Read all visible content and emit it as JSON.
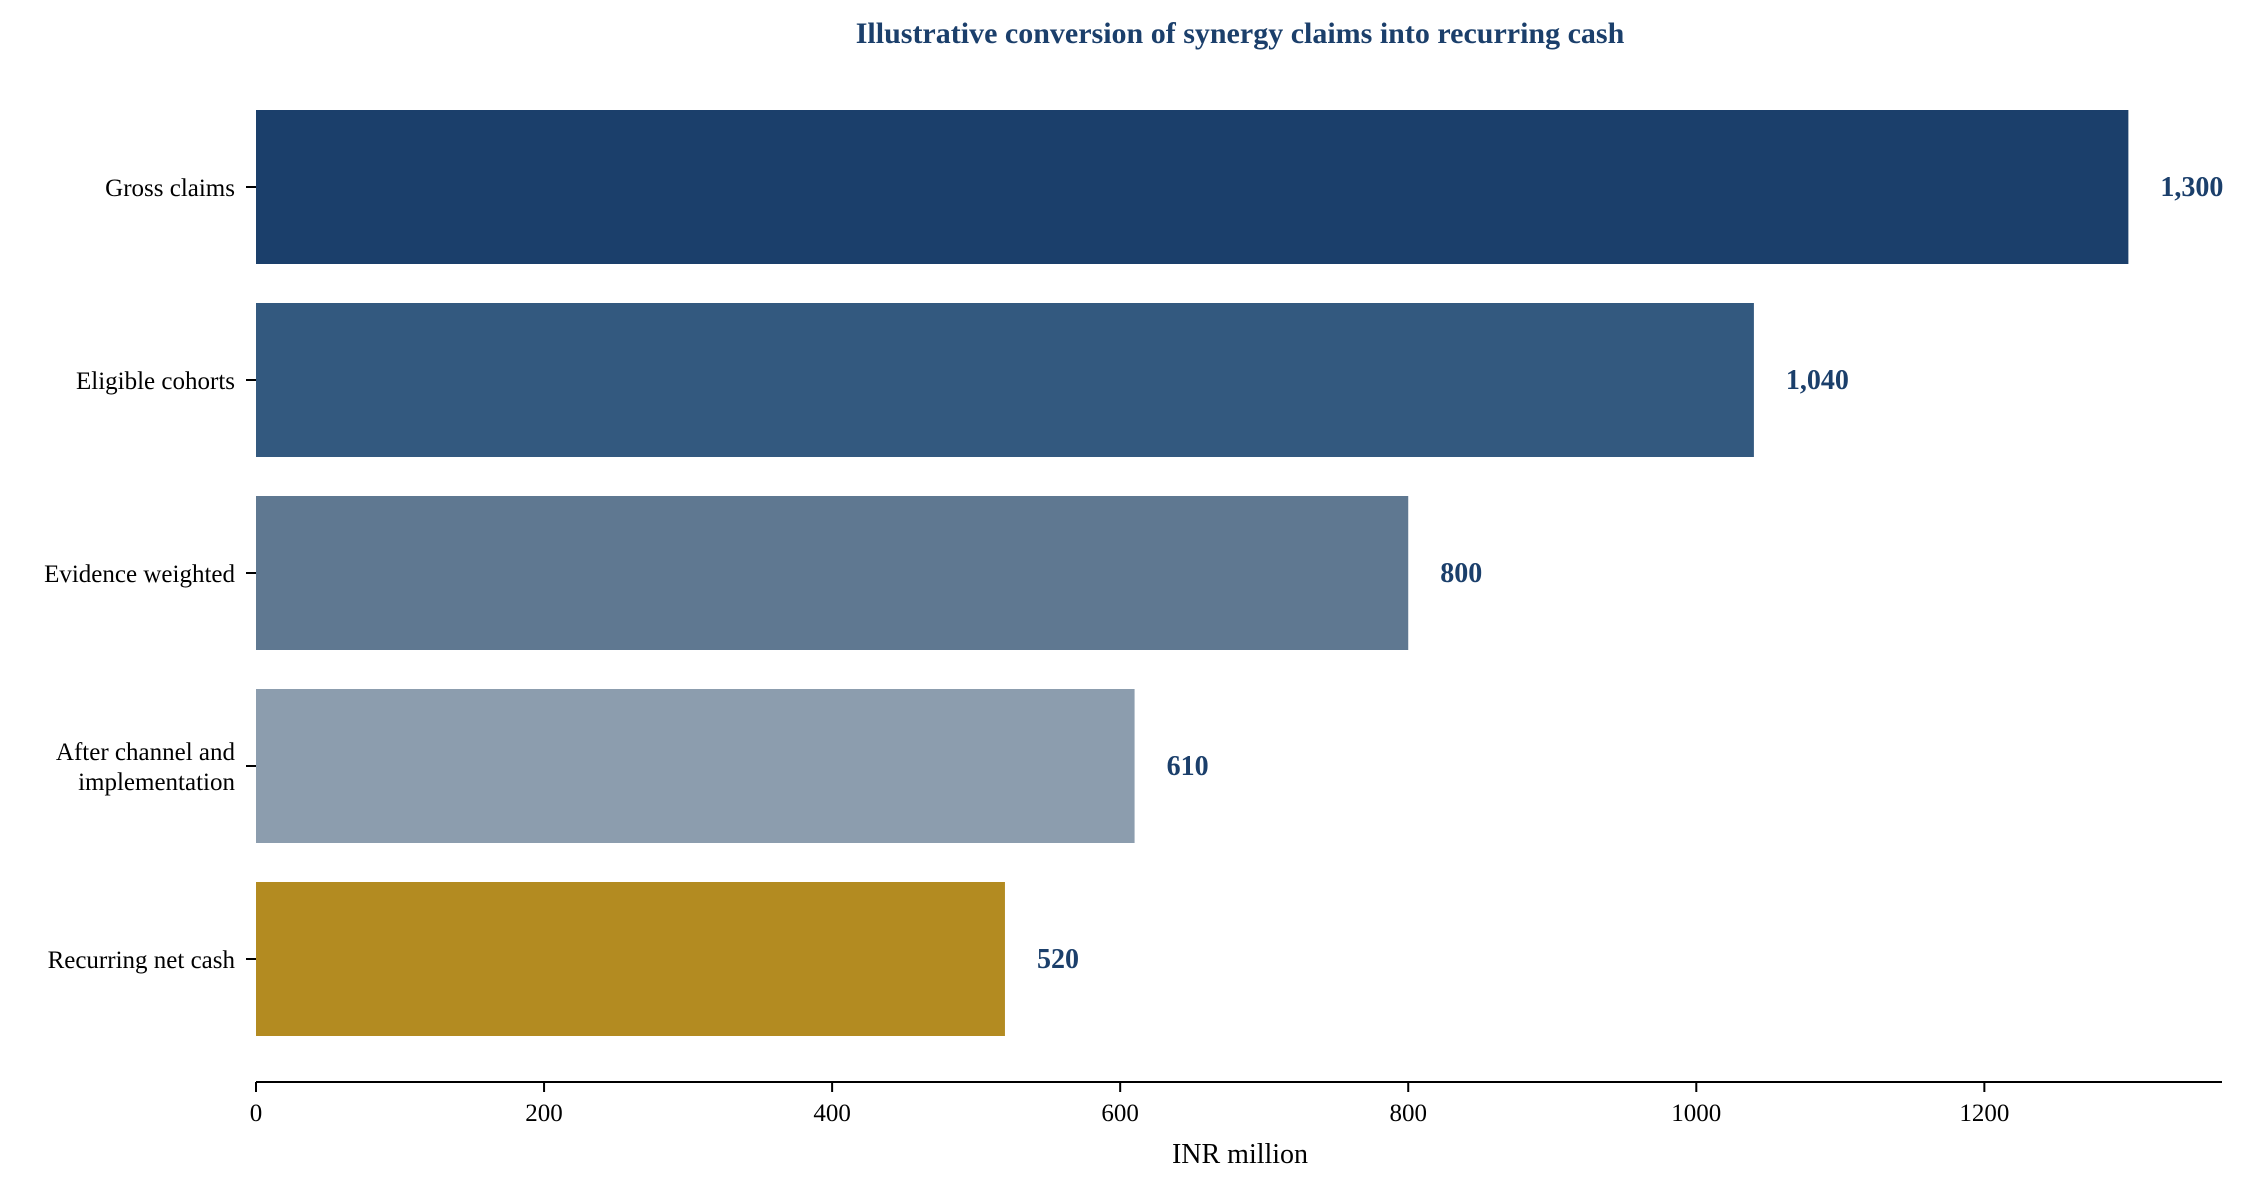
{
  "chart_data": {
    "type": "bar",
    "orientation": "horizontal",
    "title": "Illustrative conversion of synergy claims into recurring cash",
    "xlabel": "INR million",
    "ylabel": "",
    "xlim": [
      0,
      1365
    ],
    "xticks": [
      0,
      200,
      400,
      600,
      800,
      1000,
      1200
    ],
    "categories": [
      [
        "Gross claims"
      ],
      [
        "Eligible cohorts"
      ],
      [
        "Evidence weighted"
      ],
      [
        "After channel and",
        "implementation"
      ],
      [
        "Recurring net cash"
      ]
    ],
    "values": [
      1300,
      1040,
      800,
      610,
      520
    ],
    "value_labels": [
      "1,300",
      "1,040",
      "800",
      "610",
      "520"
    ],
    "bar_colors": [
      "#1b3f6b",
      "#33597f",
      "#5f7891",
      "#8c9dae",
      "#b38b21"
    ],
    "title_color": "#1b3f6b",
    "value_label_color": "#1b3f6b",
    "grid": false,
    "legend": "none"
  }
}
